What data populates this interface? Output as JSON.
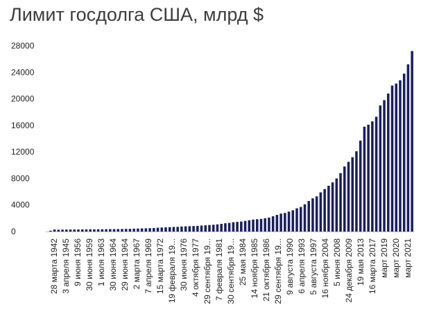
{
  "title": "Лимит госдолга США, млрд $",
  "colors": {
    "bar": "#1b1f5e",
    "axis": "#bdbdbd",
    "text": "#222222"
  },
  "chart_data": {
    "type": "bar",
    "title": "Лимит госдолга США, млрд $",
    "xlabel": "",
    "ylabel": "",
    "ylim": [
      0,
      28000
    ],
    "yticks": [
      0,
      4000,
      8000,
      12000,
      16000,
      20000,
      24000,
      28000
    ],
    "grid": false,
    "legend": "none",
    "x_tick_labels": [
      "28 марта 1942",
      "3 апреля 1945",
      "9 июня 1956",
      "30 июня 1959",
      "1 июля 1963",
      "30 июня 1964",
      "29 июня 1964",
      "2 марта 1967",
      "7 апреля 1969",
      "15 марта 1972",
      "19 февраля 19...",
      "30 июня 1976",
      "4 октября 1977",
      "29 сентября 19...",
      "7 февраля 1981",
      "30 сентября 19...",
      "25 мая 1984",
      "14 ноября 1985",
      "21 октября 1986",
      "29 сентября 19...",
      "9 августа 1990",
      "6 апреля 1993",
      "5 августа 1997",
      "16 ноября 2004",
      "5 июня 2008",
      "24 декабря 2009",
      "19 мая 2013",
      "16 марта 2017",
      "март 2019",
      "март 2020",
      "март 2021"
    ],
    "values": [
      125,
      300,
      275,
      285,
      295,
      300,
      305,
      310,
      315,
      320,
      325,
      330,
      335,
      340,
      350,
      360,
      365,
      370,
      380,
      395,
      400,
      430,
      450,
      465,
      480,
      500,
      520,
      570,
      600,
      630,
      660,
      690,
      700,
      750,
      780,
      800,
      830,
      850,
      900,
      940,
      980,
      1020,
      1080,
      1150,
      1250,
      1300,
      1400,
      1450,
      1500,
      1600,
      1700,
      1800,
      1850,
      1900,
      2000,
      2100,
      2300,
      2500,
      2700,
      2800,
      3000,
      3200,
      3500,
      3700,
      4100,
      4600,
      5000,
      5300,
      5900,
      6400,
      6900,
      7400,
      8000,
      8800,
      9800,
      10500,
      11200,
      12100,
      13700,
      15800,
      16100,
      16600,
      17300,
      19000,
      19800,
      20800,
      22000,
      22300,
      22800,
      23800,
      25200,
      27200
    ]
  }
}
